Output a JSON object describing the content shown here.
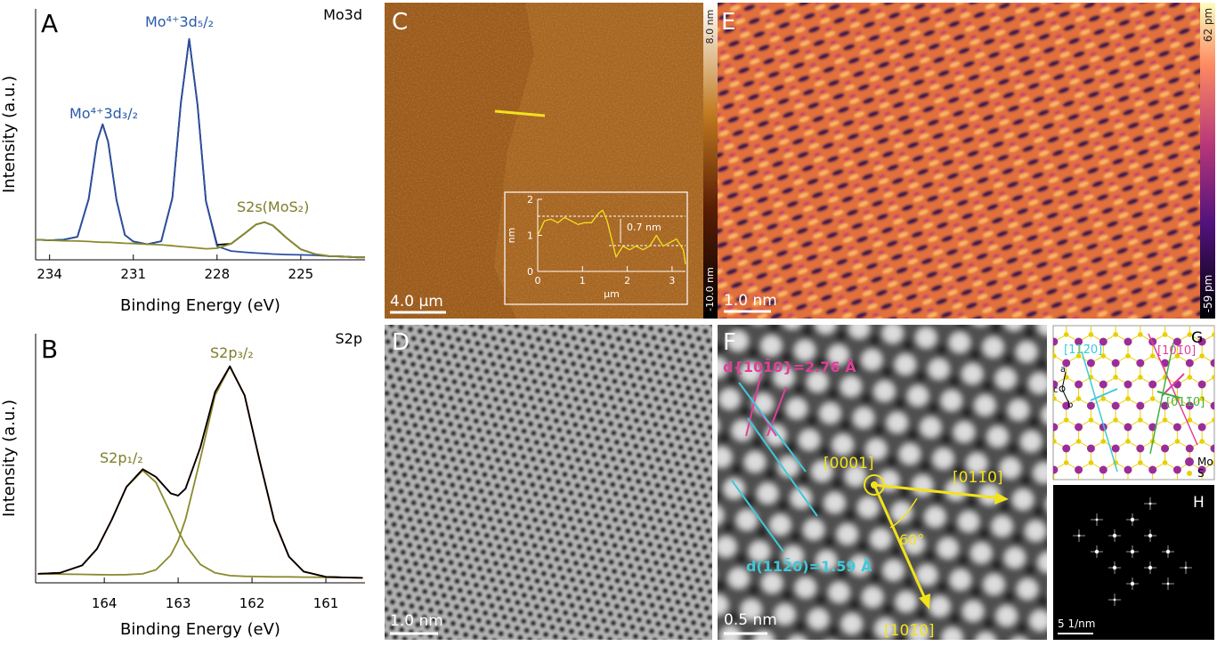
{
  "chart_data": [
    {
      "type": "line",
      "label": "A",
      "title": "Mo3d",
      "xlabel": "Binding Energy (eV)",
      "ylabel": "Intensity (a.u.)",
      "x": [
        234.5,
        234,
        233.5,
        233,
        232.6,
        232.3,
        232.1,
        231.9,
        231.6,
        231.3,
        231,
        230.5,
        230,
        229.6,
        229.3,
        229.0,
        228.7,
        228.4,
        228,
        227.5,
        227,
        226.6,
        226.3,
        226,
        225.5,
        225,
        224.5,
        224,
        223.5,
        223,
        222.7
      ],
      "xlim": [
        234.5,
        222.7
      ],
      "xticks": [
        234,
        231,
        228,
        225
      ],
      "ylim": [
        0,
        100
      ],
      "series": [
        {
          "color": "#000000",
          "values": [
            8,
            7.8,
            8,
            9.2,
            24.2,
            47.1,
            54,
            47,
            23.8,
            9.9,
            7.3,
            6.2,
            7.4,
            24.6,
            62.3,
            88,
            61.7,
            23.4,
            6,
            6.4,
            10.6,
            14.1,
            15,
            13.7,
            8.6,
            4.2,
            2.3,
            1.5,
            1.3,
            1,
            1
          ]
        },
        {
          "color": "#2b4fa3",
          "values": [
            8,
            7.8,
            8,
            9.2,
            24.2,
            47.1,
            54,
            47,
            23.8,
            9.9,
            7.3,
            6.2,
            7.4,
            24.6,
            62.3,
            88,
            61.7,
            23.4,
            5.4,
            3.5,
            3,
            2.7,
            2.5,
            2.3,
            2.1,
            2,
            1.8,
            1.5,
            1.3,
            1,
            1
          ]
        },
        {
          "color": "#8a8a2e",
          "values": [
            8,
            7.8,
            7.6,
            7.5,
            7.3,
            7.1,
            7,
            7,
            6.8,
            6.6,
            6.5,
            6.2,
            6,
            5.6,
            5.3,
            5,
            4.7,
            4.4,
            4.6,
            6.4,
            10.6,
            14.1,
            15,
            13.7,
            8.6,
            4.2,
            2.3,
            1.5,
            1.3,
            1,
            1
          ]
        }
      ],
      "annotations": [
        "Mo⁴⁺3d₃/₂",
        "Mo⁴⁺3d₅/₂",
        "S2s(MoS₂)"
      ]
    },
    {
      "type": "line",
      "label": "B",
      "title": "S2p",
      "xlabel": "Binding Energy (eV)",
      "ylabel": "Intensity (a.u.)",
      "x": [
        164.9,
        164.6,
        164.3,
        164.1,
        163.9,
        163.7,
        163.48,
        163.3,
        163.1,
        163.0,
        162.9,
        162.7,
        162.5,
        162.3,
        162.1,
        161.9,
        161.7,
        161.5,
        161.3,
        161.0,
        160.7,
        160.5
      ],
      "xlim": [
        164.93,
        160.47
      ],
      "xticks": [
        164,
        163,
        162,
        161
      ],
      "ylim": [
        0,
        100
      ],
      "series": [
        {
          "color": "#8a8a2e",
          "values": [
            3.6,
            4.0,
            7.0,
            13.6,
            25.2,
            38.4,
            45.1,
            40.3,
            27.8,
            21.0,
            15.2,
            7.4,
            4.0,
            2.9,
            2.6,
            2.5,
            2.4,
            2.4,
            2.3,
            2.2,
            2.1,
            2.0
          ]
        },
        {
          "color": "#8a8a2e",
          "values": [
            3.6,
            3.5,
            3.4,
            3.3,
            3.2,
            3.3,
            3.6,
            5.2,
            11.1,
            16.9,
            25.5,
            49.7,
            75.3,
            86.7,
            75.2,
            49.4,
            25.0,
            10.5,
            4.5,
            2.4,
            2.1,
            2.0
          ]
        },
        {
          "color": "#d62a20",
          "values": [
            3.6,
            4.0,
            7.0,
            13.6,
            25.2,
            38.5,
            45.6,
            42.5,
            35.9,
            35.0,
            37.8,
            54.3,
            76.6,
            86.9,
            75.2,
            49.4,
            25.0,
            10.5,
            4.5,
            2.4,
            2.1,
            2.0
          ]
        },
        {
          "color": "#000000",
          "values": [
            3.6,
            4.0,
            7.0,
            13.6,
            25.2,
            38.5,
            45.6,
            42.5,
            35.9,
            35.0,
            37.8,
            54.3,
            76.6,
            86.9,
            75.2,
            49.4,
            25.0,
            10.5,
            4.5,
            2.4,
            2.1,
            2.0
          ]
        }
      ],
      "annotations": [
        "S2p₁/₂",
        "S2p₃/₂"
      ]
    },
    {
      "type": "line",
      "xlabel": "µm",
      "ylabel": "nm",
      "x": [
        0,
        0.15,
        0.3,
        0.45,
        0.6,
        0.75,
        0.9,
        1.05,
        1.2,
        1.35,
        1.45,
        1.55,
        1.65,
        1.75,
        1.9,
        2.05,
        2.2,
        2.35,
        2.5,
        2.65,
        2.8,
        2.95,
        3.1,
        3.25,
        3.3
      ],
      "xlim": [
        0,
        3.3
      ],
      "ylim": [
        0,
        2
      ],
      "xticks": [
        0,
        1,
        2,
        3
      ],
      "yticks": [
        0,
        1,
        2
      ],
      "series": [
        {
          "color": "#f2e21c",
          "values": [
            1.0,
            1.4,
            1.45,
            1.35,
            1.5,
            1.4,
            1.3,
            1.35,
            1.35,
            1.6,
            1.7,
            1.4,
            0.9,
            0.4,
            0.7,
            0.6,
            0.7,
            0.6,
            0.7,
            1.0,
            0.7,
            0.8,
            0.9,
            0.6,
            0.2
          ]
        }
      ],
      "annotations": [
        "0.7 nm"
      ]
    }
  ],
  "panels": {
    "C": {
      "label": "C",
      "colorbar": {
        "max_label": "8.0 nm",
        "min_label": "-10.0 nm"
      },
      "scale_bar": "4.0 µm"
    },
    "D": {
      "label": "D",
      "scale_bar": "1.0 nm"
    },
    "E": {
      "label": "E",
      "colorbar": {
        "max_label": "62 pm",
        "min_label": "-59 pm"
      },
      "scale_bar": "1.0 nm"
    },
    "F": {
      "label": "F",
      "scale_bar": "0.5 nm",
      "spacing_labels": [
        "d{101̄0}=2.76 Å",
        "d(112̄0)=1.59 Å"
      ],
      "directions": [
        "[0001]",
        "[011̄0]",
        "[101̄0]"
      ],
      "angle": "60°"
    },
    "G": {
      "label": "G",
      "directions": [
        "[112̄0]",
        "[101̄0]",
        "[011̄0]"
      ],
      "axes": [
        "a",
        "c",
        "b"
      ],
      "legend": [
        "Mo",
        "S"
      ]
    },
    "H": {
      "label": "H",
      "scale_bar": "5 1/nm"
    }
  }
}
